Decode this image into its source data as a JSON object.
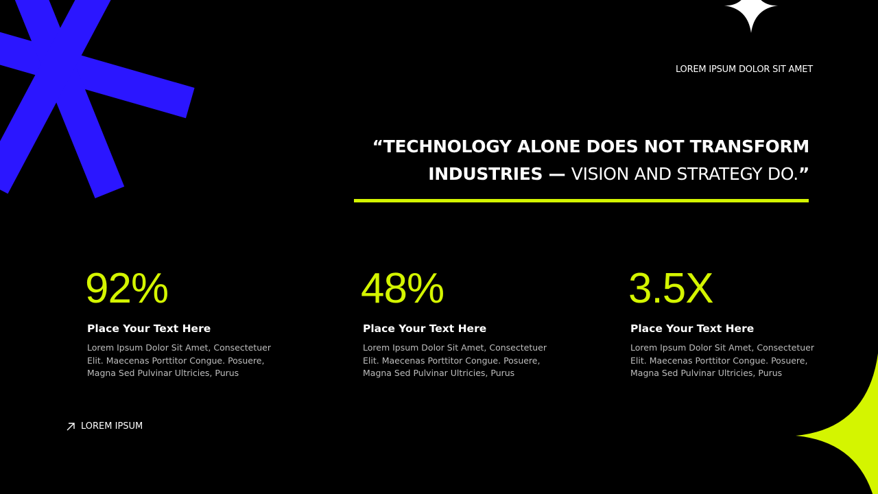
{
  "header": {
    "label": "LOREM IPSUM DOLOR SIT AMET"
  },
  "quote": {
    "bold": "“TECHNOLOGY ALONE DOES NOT TRANSFORM INDUSTRIES — ",
    "light": "VISION AND STRATEGY DO.",
    "close": "”"
  },
  "stats": [
    {
      "value": "92%",
      "heading": "Place Your Text Here",
      "body": "Lorem Ipsum Dolor Sit Amet, Consectetuer Elit. Maecenas Porttitor Congue. Posuere, Magna Sed Pulvinar Ultricies, Purus"
    },
    {
      "value": "48%",
      "heading": "Place Your Text Here",
      "body": "Lorem Ipsum Dolor Sit Amet, Consectetuer Elit. Maecenas Porttitor Congue. Posuere, Magna Sed Pulvinar Ultricies, Purus"
    },
    {
      "value": "3.5X",
      "heading": "Place Your Text Here",
      "body": "Lorem Ipsum Dolor Sit Amet, Consectetuer Elit. Maecenas Porttitor Congue. Posuere, Magna Sed Pulvinar Ultricies, Purus"
    }
  ],
  "footer": {
    "link": "LOREM IPSUM"
  }
}
